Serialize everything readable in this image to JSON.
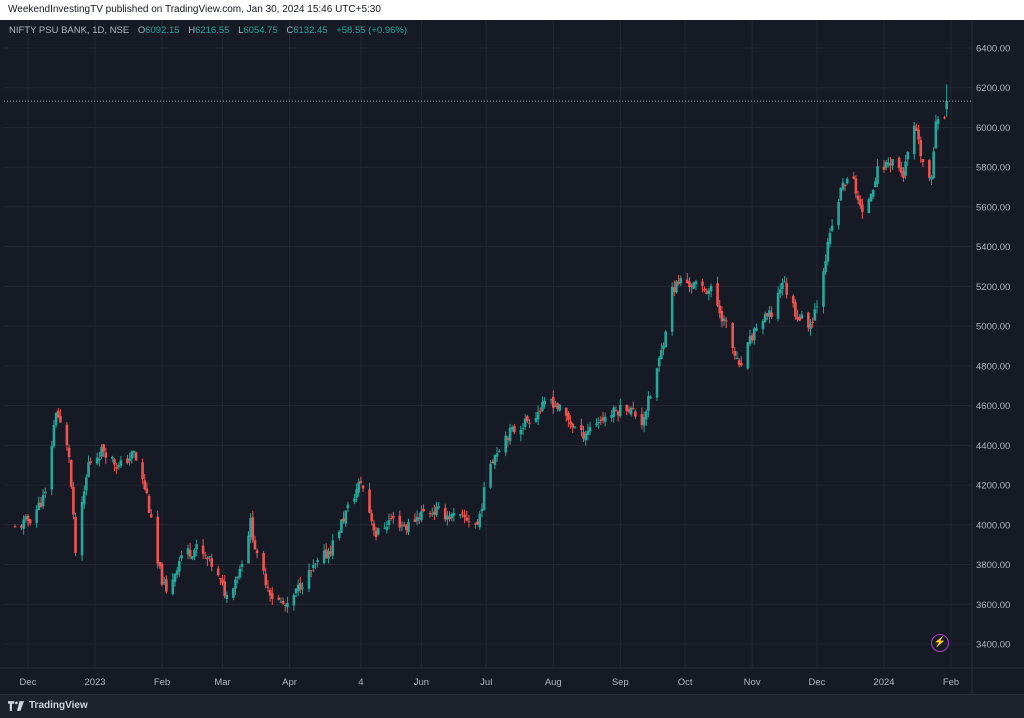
{
  "header": {
    "publish_text": "WeekendInvestingTV published on TradingView.com, Jan 30, 2024 15:46 UTC+5:30"
  },
  "legend": {
    "symbol": "NIFTY PSU BANK, 1D, NSE",
    "open_label": "O",
    "open": "6092.15",
    "high_label": "H",
    "high": "6216.55",
    "low_label": "L",
    "low": "6054.75",
    "close_label": "C",
    "close": "6132.45",
    "change": "+58.55 (+0.96%)"
  },
  "footer": {
    "brand": "TradingView"
  },
  "icons": {
    "alert": "lightning-icon",
    "logo": "tradingview-logo-icon"
  },
  "colors": {
    "up": "#26a69a",
    "down": "#ef5350",
    "background": "#161a25",
    "grid": "#232733",
    "axis_text": "#b2b5be",
    "last_price_line": "#c9c9c9"
  },
  "chart_data": {
    "type": "candlestick",
    "title": "NIFTY PSU BANK, 1D, NSE",
    "xlabel": "",
    "ylabel": "",
    "ylim": [
      3300,
      6500
    ],
    "grid": true,
    "y_ticks": [
      "3400.00",
      "3600.00",
      "3800.00",
      "4000.00",
      "4200.00",
      "4400.00",
      "4600.00",
      "4800.00",
      "5000.00",
      "5200.00",
      "5400.00",
      "5600.00",
      "5800.00",
      "6000.00",
      "6200.00",
      "6400.00"
    ],
    "x_ticks": [
      "Dec",
      "2023",
      "Feb",
      "Mar",
      "Apr",
      "4",
      "Jun",
      "Jul",
      "Aug",
      "Sep",
      "Oct",
      "Nov",
      "Dec",
      "2024",
      "Feb"
    ],
    "x_tick_dates": [
      "2022-12-01",
      "2023-01-01",
      "2023-02-01",
      "2023-03-01",
      "2023-04-01",
      "2023-05-04",
      "2023-06-01",
      "2023-07-01",
      "2023-08-01",
      "2023-09-01",
      "2023-10-01",
      "2023-11-01",
      "2023-12-01",
      "2024-01-01",
      "2024-02-01"
    ],
    "date_range": [
      "2022-11-25",
      "2024-01-30"
    ],
    "last_close": 6132.45,
    "close_path": [
      [
        "2022-11-25",
        3980
      ],
      [
        "2022-12-02",
        4030
      ],
      [
        "2022-12-09",
        4150
      ],
      [
        "2022-12-14",
        4580
      ],
      [
        "2022-12-20",
        4350
      ],
      [
        "2022-12-23",
        3860
      ],
      [
        "2022-12-29",
        4310
      ],
      [
        "2023-01-05",
        4380
      ],
      [
        "2023-01-12",
        4290
      ],
      [
        "2023-01-19",
        4360
      ],
      [
        "2023-01-25",
        4150
      ],
      [
        "2023-01-30",
        3800
      ],
      [
        "2023-02-03",
        3650
      ],
      [
        "2023-02-10",
        3850
      ],
      [
        "2023-02-17",
        3880
      ],
      [
        "2023-02-24",
        3800
      ],
      [
        "2023-03-03",
        3640
      ],
      [
        "2023-03-09",
        3780
      ],
      [
        "2023-03-14",
        4010
      ],
      [
        "2023-03-17",
        3830
      ],
      [
        "2023-03-24",
        3640
      ],
      [
        "2023-03-31",
        3580
      ],
      [
        "2023-04-06",
        3700
      ],
      [
        "2023-04-13",
        3790
      ],
      [
        "2023-04-20",
        3880
      ],
      [
        "2023-04-27",
        4060
      ],
      [
        "2023-05-04",
        4220
      ],
      [
        "2023-05-11",
        3950
      ],
      [
        "2023-05-18",
        4030
      ],
      [
        "2023-05-25",
        3990
      ],
      [
        "2023-06-01",
        4060
      ],
      [
        "2023-06-08",
        4070
      ],
      [
        "2023-06-15",
        4040
      ],
      [
        "2023-06-22",
        4030
      ],
      [
        "2023-06-27",
        4000
      ],
      [
        "2023-07-03",
        4320
      ],
      [
        "2023-07-10",
        4450
      ],
      [
        "2023-07-17",
        4500
      ],
      [
        "2023-07-24",
        4560
      ],
      [
        "2023-07-31",
        4630
      ],
      [
        "2023-08-07",
        4540
      ],
      [
        "2023-08-14",
        4450
      ],
      [
        "2023-08-21",
        4520
      ],
      [
        "2023-08-28",
        4560
      ],
      [
        "2023-09-04",
        4600
      ],
      [
        "2023-09-11",
        4520
      ],
      [
        "2023-09-15",
        4650
      ],
      [
        "2023-09-20",
        4870
      ],
      [
        "2023-09-25",
        5180
      ],
      [
        "2023-09-29",
        5230
      ],
      [
        "2023-10-06",
        5200
      ],
      [
        "2023-10-13",
        5180
      ],
      [
        "2023-10-20",
        5000
      ],
      [
        "2023-10-26",
        4780
      ],
      [
        "2023-10-31",
        4920
      ],
      [
        "2023-11-03",
        5000
      ],
      [
        "2023-11-10",
        5060
      ],
      [
        "2023-11-15",
        5230
      ],
      [
        "2023-11-22",
        5050
      ],
      [
        "2023-11-28",
        5010
      ],
      [
        "2023-12-01",
        5120
      ],
      [
        "2023-12-04",
        5300
      ],
      [
        "2023-12-08",
        5500
      ],
      [
        "2023-12-13",
        5720
      ],
      [
        "2023-12-18",
        5730
      ],
      [
        "2023-12-22",
        5550
      ],
      [
        "2023-12-29",
        5780
      ],
      [
        "2024-01-05",
        5840
      ],
      [
        "2024-01-10",
        5760
      ],
      [
        "2024-01-15",
        6000
      ],
      [
        "2024-01-19",
        5820
      ],
      [
        "2024-01-23",
        5720
      ],
      [
        "2024-01-25",
        6050
      ],
      [
        "2024-01-29",
        6074
      ],
      [
        "2024-01-30",
        6132
      ]
    ],
    "last_candle": {
      "date": "2024-01-30",
      "open": 6092.15,
      "high": 6216.55,
      "low": 6054.75,
      "close": 6132.45
    }
  }
}
